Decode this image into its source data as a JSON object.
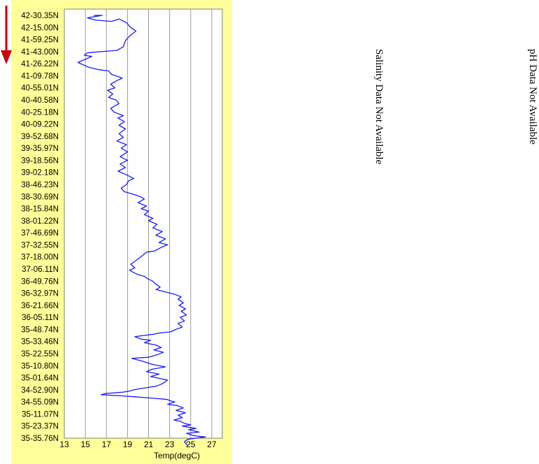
{
  "chart_data": {
    "type": "line",
    "xlabel": "Temp(degC)",
    "xlim": [
      13,
      28
    ],
    "xticks": [
      13,
      15,
      17,
      19,
      21,
      23,
      25,
      27
    ],
    "grid_x_lines": [
      15,
      17,
      19,
      21,
      23,
      25,
      27
    ],
    "y_tick_labels": [
      "42-30.35N",
      "42-15.00N",
      "41-59.25N",
      "41-43.00N",
      "41-26.22N",
      "41-09.78N",
      "40-55.01N",
      "40-40.58N",
      "40-25.18N",
      "40-09.22N",
      "39-52.68N",
      "39-35.97N",
      "39-18.56N",
      "39-02.18N",
      "38-46.23N",
      "38-30.69N",
      "38-15.84N",
      "38-01.22N",
      "37-46.69N",
      "37-32.55N",
      "37-18.00N",
      "37-06.11N",
      "36-49.76N",
      "36-32.97N",
      "36-21.66N",
      "36-05.11N",
      "35-48.74N",
      "35-33.46N",
      "35-22.55N",
      "35-10.80N",
      "35-01.64N",
      "34-52.90N",
      "34-55.09N",
      "35-11.07N",
      "35-23.37N",
      "35-35.76N"
    ],
    "series": [
      {
        "color": "#1a1aff",
        "note": "temperature along track; y index 0 = first label (top), 35 = last label (bottom)",
        "points": [
          [
            15.8,
            0.0
          ],
          [
            16.6,
            0.0
          ],
          [
            15.2,
            0.2
          ],
          [
            16.0,
            0.4
          ],
          [
            17.5,
            0.5
          ],
          [
            18.2,
            0.3
          ],
          [
            18.9,
            0.6
          ],
          [
            19.3,
            1.0
          ],
          [
            19.8,
            1.3
          ],
          [
            19.2,
            1.7
          ],
          [
            18.8,
            2.1
          ],
          [
            18.6,
            2.6
          ],
          [
            18.0,
            2.9
          ],
          [
            16.5,
            3.0
          ],
          [
            15.2,
            3.1
          ],
          [
            14.9,
            3.3
          ],
          [
            15.6,
            3.4
          ],
          [
            14.3,
            3.9
          ],
          [
            15.3,
            4.3
          ],
          [
            16.3,
            4.5
          ],
          [
            17.2,
            4.6
          ],
          [
            17.5,
            4.9
          ],
          [
            17.9,
            5.0
          ],
          [
            18.5,
            5.2
          ],
          [
            18.0,
            5.4
          ],
          [
            17.4,
            5.7
          ],
          [
            17.8,
            6.0
          ],
          [
            17.1,
            6.2
          ],
          [
            17.6,
            6.5
          ],
          [
            17.2,
            6.8
          ],
          [
            17.9,
            7.0
          ],
          [
            18.2,
            7.3
          ],
          [
            17.4,
            7.7
          ],
          [
            17.7,
            8.0
          ],
          [
            18.6,
            8.3
          ],
          [
            18.1,
            8.5
          ],
          [
            18.7,
            8.8
          ],
          [
            18.2,
            9.1
          ],
          [
            18.8,
            9.4
          ],
          [
            18.2,
            9.8
          ],
          [
            18.6,
            10.1
          ],
          [
            18.0,
            10.4
          ],
          [
            18.9,
            10.7
          ],
          [
            18.4,
            11.0
          ],
          [
            19.0,
            11.3
          ],
          [
            18.3,
            11.7
          ],
          [
            19.0,
            12.0
          ],
          [
            18.3,
            12.3
          ],
          [
            18.8,
            12.6
          ],
          [
            18.1,
            12.9
          ],
          [
            18.9,
            13.2
          ],
          [
            19.6,
            13.5
          ],
          [
            19.1,
            13.7
          ],
          [
            18.9,
            14.0
          ],
          [
            18.4,
            14.3
          ],
          [
            18.7,
            14.6
          ],
          [
            19.5,
            14.8
          ],
          [
            20.2,
            15.0
          ],
          [
            20.6,
            15.2
          ],
          [
            20.0,
            15.5
          ],
          [
            20.8,
            15.8
          ],
          [
            20.3,
            16.0
          ],
          [
            21.0,
            16.2
          ],
          [
            20.6,
            16.5
          ],
          [
            21.4,
            16.8
          ],
          [
            21.0,
            17.0
          ],
          [
            21.8,
            17.3
          ],
          [
            21.4,
            17.6
          ],
          [
            22.3,
            17.9
          ],
          [
            21.7,
            18.2
          ],
          [
            22.6,
            18.5
          ],
          [
            22.0,
            18.8
          ],
          [
            22.8,
            19.0
          ],
          [
            22.2,
            19.2
          ],
          [
            21.6,
            19.5
          ],
          [
            20.8,
            19.6
          ],
          [
            20.4,
            19.9
          ],
          [
            20.1,
            20.1
          ],
          [
            19.8,
            20.3
          ],
          [
            19.3,
            20.6
          ],
          [
            19.7,
            20.9
          ],
          [
            19.2,
            21.1
          ],
          [
            19.6,
            21.3
          ],
          [
            20.1,
            21.5
          ],
          [
            20.6,
            21.6
          ],
          [
            20.9,
            21.8
          ],
          [
            21.4,
            22.0
          ],
          [
            21.6,
            22.2
          ],
          [
            22.1,
            22.5
          ],
          [
            21.7,
            22.7
          ],
          [
            22.6,
            22.9
          ],
          [
            23.5,
            23.1
          ],
          [
            24.1,
            23.3
          ],
          [
            23.8,
            23.5
          ],
          [
            24.3,
            23.8
          ],
          [
            23.9,
            24.0
          ],
          [
            24.5,
            24.3
          ],
          [
            24.1,
            24.5
          ],
          [
            24.6,
            24.8
          ],
          [
            24.0,
            25.0
          ],
          [
            24.4,
            25.3
          ],
          [
            23.8,
            25.5
          ],
          [
            24.2,
            25.8
          ],
          [
            23.6,
            26.0
          ],
          [
            23.1,
            26.2
          ],
          [
            22.0,
            26.3
          ],
          [
            21.5,
            26.4
          ],
          [
            20.5,
            26.5
          ],
          [
            19.7,
            26.6
          ],
          [
            20.3,
            26.8
          ],
          [
            21.2,
            26.9
          ],
          [
            20.6,
            27.1
          ],
          [
            21.7,
            27.3
          ],
          [
            22.2,
            27.5
          ],
          [
            21.5,
            27.7
          ],
          [
            22.4,
            27.9
          ],
          [
            21.8,
            28.1
          ],
          [
            21.0,
            28.3
          ],
          [
            19.4,
            28.4
          ],
          [
            20.3,
            28.6
          ],
          [
            21.4,
            28.9
          ],
          [
            22.6,
            29.1
          ],
          [
            21.3,
            29.3
          ],
          [
            20.8,
            29.5
          ],
          [
            22.0,
            29.7
          ],
          [
            21.2,
            29.9
          ],
          [
            22.8,
            30.2
          ],
          [
            22.3,
            30.5
          ],
          [
            21.7,
            30.7
          ],
          [
            21.0,
            30.8
          ],
          [
            20.2,
            30.9
          ],
          [
            19.6,
            31.0
          ],
          [
            19.2,
            31.1
          ],
          [
            18.5,
            31.2
          ],
          [
            17.0,
            31.3
          ],
          [
            16.5,
            31.4
          ],
          [
            18.5,
            31.5
          ],
          [
            20.0,
            31.6
          ],
          [
            21.5,
            31.7
          ],
          [
            22.8,
            31.8
          ],
          [
            23.0,
            31.9
          ],
          [
            23.5,
            32.0
          ],
          [
            22.8,
            32.2
          ],
          [
            23.7,
            32.3
          ],
          [
            24.3,
            32.5
          ],
          [
            23.6,
            32.7
          ],
          [
            24.5,
            32.9
          ],
          [
            23.8,
            33.1
          ],
          [
            24.2,
            33.3
          ],
          [
            23.4,
            33.5
          ],
          [
            24.0,
            33.6
          ],
          [
            24.5,
            33.8
          ],
          [
            25.0,
            33.9
          ],
          [
            24.2,
            34.0
          ],
          [
            25.5,
            34.2
          ],
          [
            24.8,
            34.3
          ],
          [
            25.8,
            34.5
          ],
          [
            24.6,
            34.6
          ],
          [
            25.3,
            34.8
          ],
          [
            26.4,
            34.9
          ],
          [
            25.5,
            35.0
          ],
          [
            24.7,
            35.1
          ],
          [
            24.4,
            35.3
          ],
          [
            24.7,
            35.6
          ]
        ]
      }
    ]
  },
  "notes": {
    "salinity": "Salinity Data Not Available",
    "ph": "pH Data Not Available"
  },
  "colors": {
    "panel_background": "#ffff99",
    "plot_background": "#ffffff",
    "line": "#1a1aff",
    "arrow": "#cc0000",
    "grid": "#9a9a9a"
  }
}
